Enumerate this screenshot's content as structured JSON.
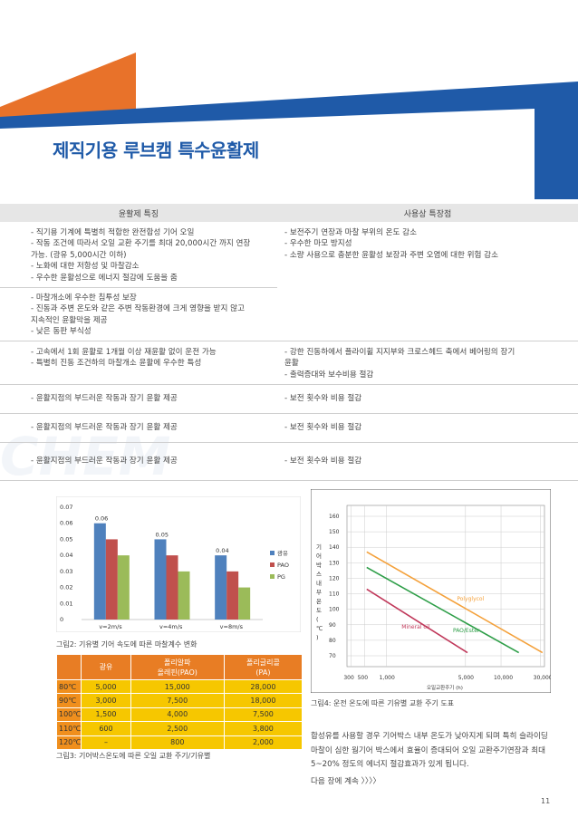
{
  "title": "제직기용 루브캠 특수윤활제",
  "table": {
    "header": [
      "윤활제 특징",
      "사용상 특장점"
    ],
    "rows": [
      {
        "left": [
          "- 직기용 기계에 특별히 적합한 완전합성 기어 오일",
          "- 작동 조건에 따라서 오일 교환 주기를 최대 20,000시간 까지 연장",
          "   가능. (광유 5,000시간 이하)",
          "- 노화에 대한 저항성 및 마찰감소",
          "- 우수한 윤활성으로 에너지 절감에 도움을 줌"
        ],
        "right": [
          "- 보전주기 연장과 마찰 부위의 온도 감소",
          "- 우수한 마모 방지성",
          "- 소량 사용으로 충분한 윤활성 보장과 주변 오염에 대한 위험 감소"
        ]
      },
      {
        "left": [
          "- 마찰개소에 우수한 침투성 보장",
          "- 진동과 주변 온도와 같은 주변 작동환경에 크게 영향을 받지 않고",
          "   지속적인 윤활막을 제공",
          "- 낮은 동판 부식성"
        ],
        "right": []
      },
      {
        "left": [
          "- 고속에서 1회 윤활로 1개월 이상 재윤활 없이 운전 가능",
          "- 특별히 진동 조건하의 마찰개소 윤활에 우수한 특성"
        ],
        "right": [
          "- 강한 진동하에서 플라이휠 지지부와 크로스헤드 축에서 베어링의 장기",
          "   윤활",
          "- 출력증대와 보수비용 절감"
        ]
      },
      {
        "left": [
          "- 윤활지점의 부드러운 작동과 장기 윤활 제공"
        ],
        "right": [
          "- 보전 횟수와 비용 절감"
        ]
      },
      {
        "left": [
          "- 윤활지점의 부드러운 작동과 장기 윤활 제공"
        ],
        "right": [
          "- 보전 횟수와 비용 절감"
        ]
      },
      {
        "left": [
          "- 윤활지점의 부드러운 작동과 장기 윤활 제공"
        ],
        "right": [
          "- 보전 횟수와 비용 절감"
        ]
      }
    ]
  },
  "watermark": "CHEM",
  "chart_data": [
    {
      "type": "bar",
      "categories": [
        "v=2m/s",
        "v=4m/s",
        "v=8m/s"
      ],
      "series": [
        {
          "name": "광유",
          "values": [
            0.06,
            0.05,
            0.04
          ],
          "color": "#4f81bd"
        },
        {
          "name": "PAO",
          "values": [
            0.05,
            0.04,
            0.03
          ],
          "color": "#c0504d"
        },
        {
          "name": "PG",
          "values": [
            0.04,
            0.03,
            0.02
          ],
          "color": "#9bbb59"
        }
      ],
      "data_labels": [
        "0.06",
        "0.05",
        "0.04"
      ],
      "yticks": [
        "0",
        "0.01",
        "0.02",
        "0.03",
        "0.04",
        "0.05",
        "0.06",
        "0.07"
      ],
      "ylim": [
        0,
        0.07
      ],
      "legend_position": "right",
      "caption": "그림2: 기유별 기어 속도에 따른 마찰계수 변화"
    },
    {
      "type": "line",
      "ylabel": "기어박스내부온도(℃)",
      "xlabel": "오일교환주기 (h)",
      "yticks": [
        "70",
        "80",
        "90",
        "100",
        "110",
        "120",
        "130",
        "140",
        "150",
        "160"
      ],
      "ylim": [
        70,
        160
      ],
      "xticks": [
        "300",
        "500",
        "1,000",
        "5,000",
        "10,000",
        "30,000"
      ],
      "series": [
        {
          "name": "Polyglycol",
          "color": "#f4a13b",
          "points": [
            [
              0.1,
              137
            ],
            [
              0.99,
              72
            ]
          ]
        },
        {
          "name": "PAO/Ester",
          "color": "#2e9e48",
          "points": [
            [
              0.1,
              127
            ],
            [
              0.87,
              72
            ]
          ]
        },
        {
          "name": "Mineral oil",
          "color": "#c0385a",
          "points": [
            [
              0.1,
              113
            ],
            [
              0.61,
              72
            ]
          ]
        }
      ],
      "grid": true,
      "caption": "그림4: 운전 온도에 따른 기유별 교환 주기 도표"
    }
  ],
  "table3": {
    "header": [
      "",
      "광유",
      "폴리알파\n올레핀(PAO)",
      "폴리글리콜\n(PA)"
    ],
    "rows": [
      [
        "80℃",
        "5,000",
        "15,000",
        "28,000"
      ],
      [
        "90℃",
        "3,000",
        "7,500",
        "18,000"
      ],
      [
        "100℃",
        "1,500",
        "4,000",
        "7,500"
      ],
      [
        "110℃",
        "600",
        "2,500",
        "3,800"
      ],
      [
        "120℃",
        "–",
        "800",
        "2,000"
      ]
    ],
    "caption": "그림3: 기어박스온도에 따른 오일 교환 주기/기유별"
  },
  "paragraph": "합성유를 사용할 경우 기어박스 내부 온도가 낮아지게 되며 특히 슬라이딩 마찰이 심한 웜기어 박스에서 효율이 증대되어 오일 교환주기연장과 최대 5~20% 정도의 에너지 절감효과가 있게 됩니다.",
  "next": "다음 장에 계속 〉〉〉〉",
  "page_number": "11"
}
